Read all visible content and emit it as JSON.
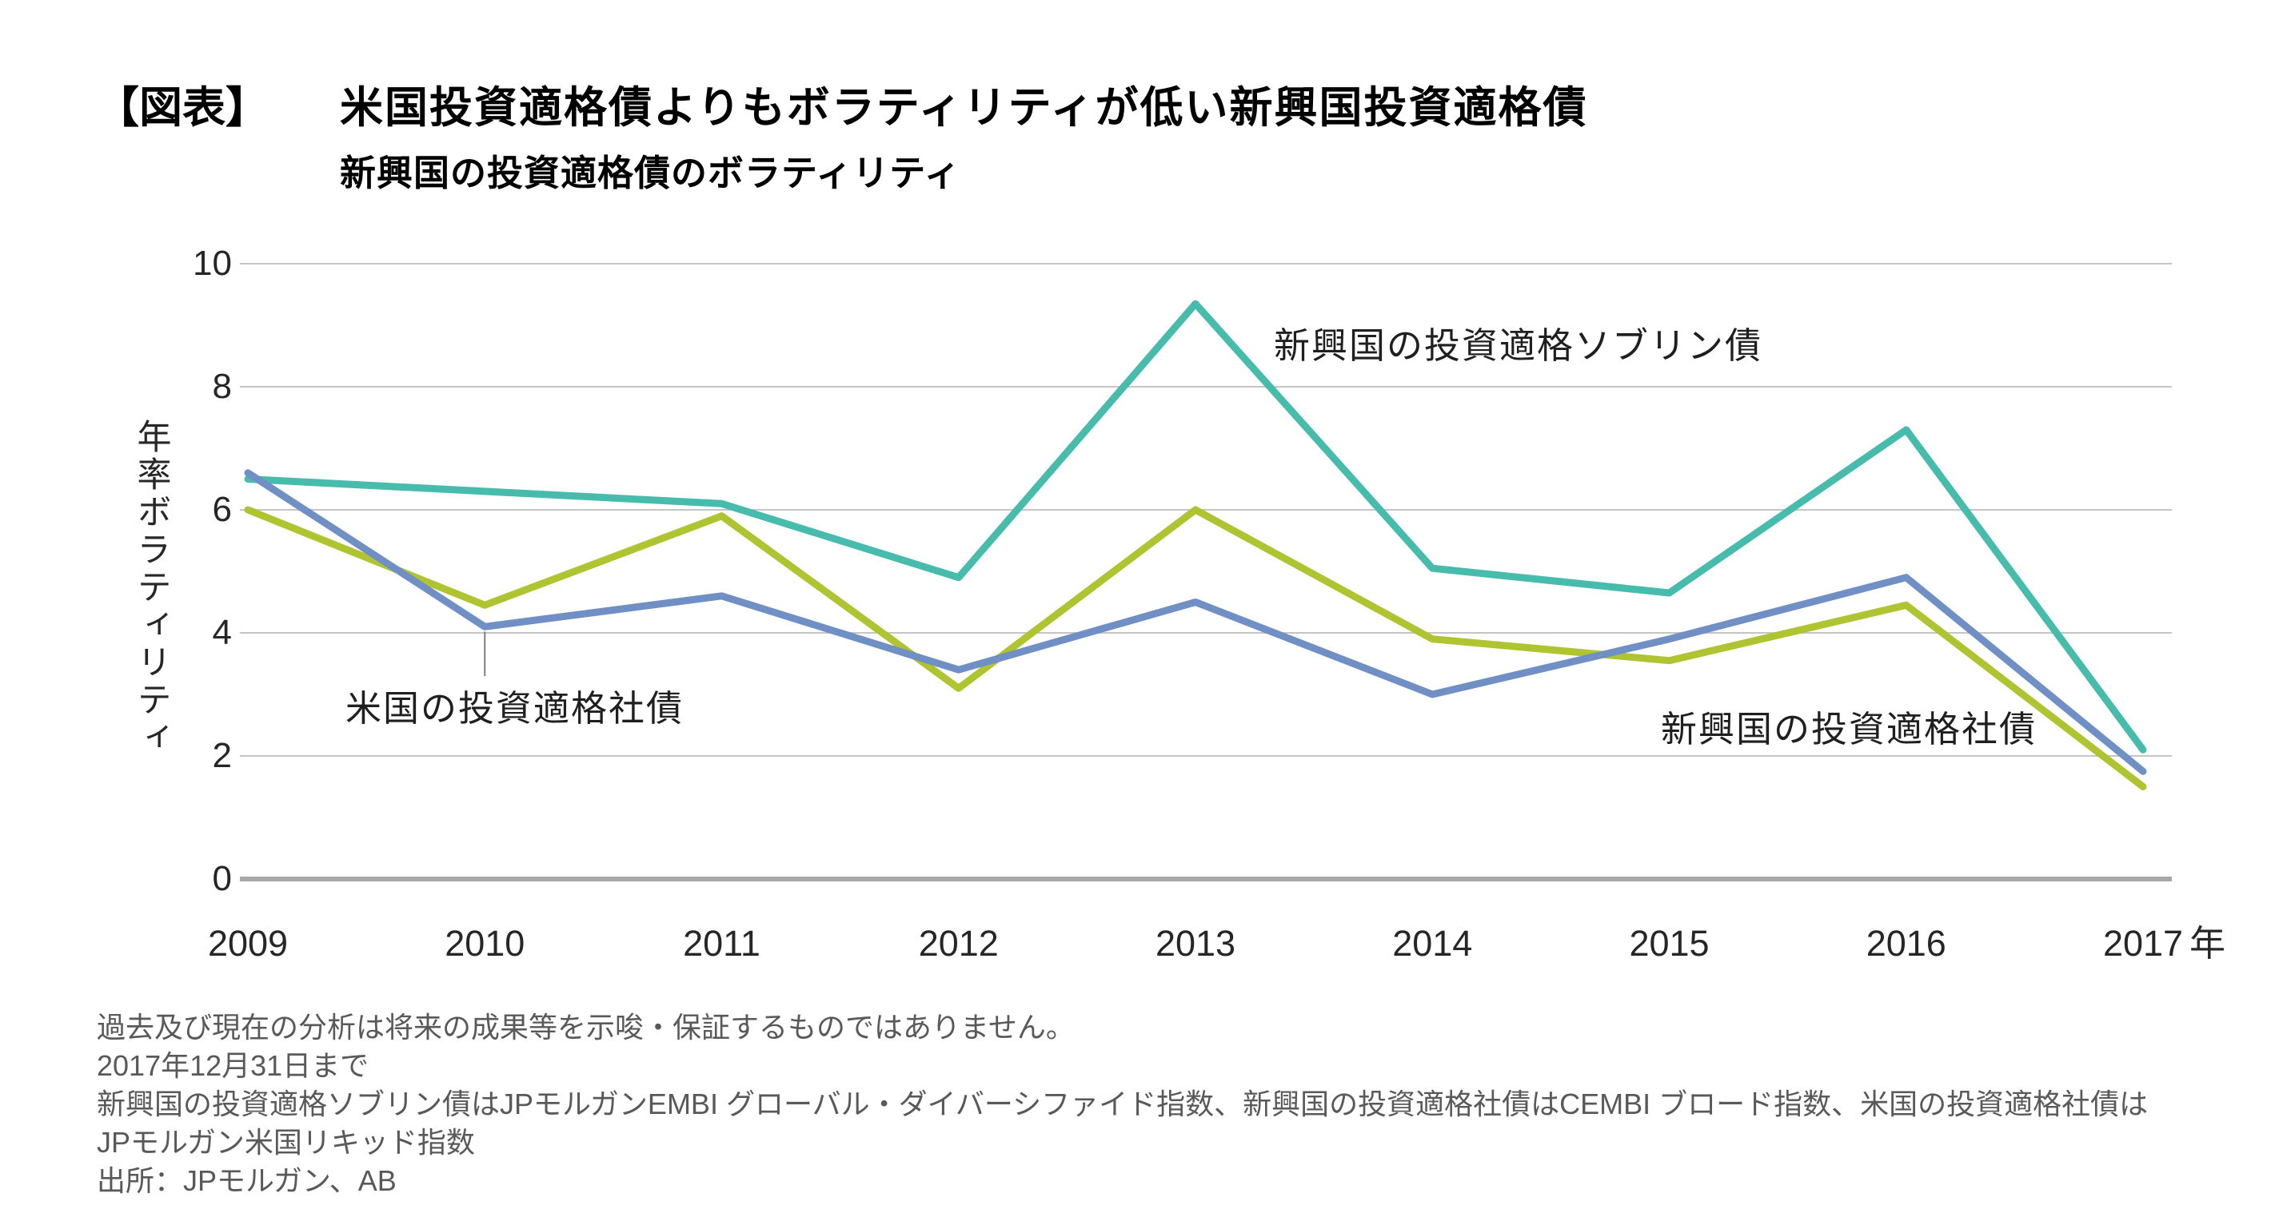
{
  "header": {
    "tag": "【図表】",
    "title": "米国投資適格債よりもボラティリティが低い新興国投資適格債",
    "subtitle": "新興国の投資適格債のボラティリティ"
  },
  "chart_data": {
    "type": "line",
    "x": [
      2009,
      2010,
      2011,
      2012,
      2013,
      2014,
      2015,
      2016,
      2017
    ],
    "x_axis_suffix": "年",
    "ylabel": "年率ボラティリティ",
    "ylim": [
      0,
      10
    ],
    "yticks": [
      0,
      2,
      4,
      6,
      8,
      10
    ],
    "grid": true,
    "legend_position": "inline-annotations",
    "series": [
      {
        "name": "新興国の投資適格ソブリン債",
        "color": "#48BCAC",
        "values": [
          6.5,
          6.3,
          6.1,
          4.9,
          9.35,
          5.05,
          4.65,
          7.3,
          2.1
        ]
      },
      {
        "name": "米国の投資適格社債",
        "color": "#7090C5",
        "values": [
          6.6,
          4.1,
          4.6,
          3.4,
          4.5,
          3.0,
          3.9,
          4.9,
          1.75
        ]
      },
      {
        "name": "新興国の投資適格社債",
        "color": "#AFC430",
        "values": [
          6.0,
          4.45,
          5.9,
          3.1,
          6.0,
          3.9,
          3.55,
          4.45,
          1.5
        ]
      }
    ]
  },
  "footnotes": {
    "lines": [
      "過去及び現在の分析は将来の成果等を示唆・保証するものではありません。",
      "2017年12月31日まで",
      "新興国の投資適格ソブリン債はJPモルガンEMBI グローバル・ダイバーシファイド指数、新興国の投資適格社債はCEMBI ブロード指数、米国の投資適格社債は",
      "JPモルガン米国リキッド指数",
      "出所：JPモルガン、AB"
    ]
  }
}
